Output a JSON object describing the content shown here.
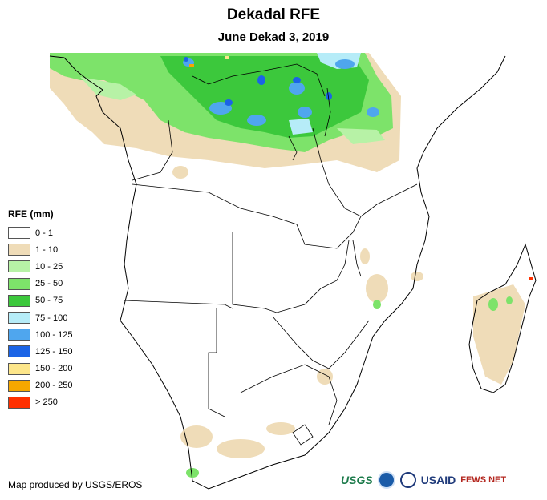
{
  "title": "Dekadal RFE",
  "subtitle": "June Dekad 3, 2019",
  "legend": {
    "title": "RFE (mm)",
    "items": [
      {
        "label": "0 - 1",
        "color": "#ffffff"
      },
      {
        "label": "1 - 10",
        "color": "#efdcb8"
      },
      {
        "label": "10 - 25",
        "color": "#b7f2a6"
      },
      {
        "label": "25 - 50",
        "color": "#7de36a"
      },
      {
        "label": "50 - 75",
        "color": "#3cc83c"
      },
      {
        "label": "75 - 100",
        "color": "#b6ecf8"
      },
      {
        "label": "100 - 125",
        "color": "#4fa6ee"
      },
      {
        "label": "125 - 150",
        "color": "#1b64e6"
      },
      {
        "label": "150 - 200",
        "color": "#fde68a"
      },
      {
        "label": "200 - 250",
        "color": "#f5a700"
      },
      {
        "label": "> 250",
        "color": "#ff3000"
      }
    ]
  },
  "credit": "Map produced by USGS/EROS",
  "logos": {
    "usgs": "USGS",
    "usaid": "USAID",
    "fews": "FEWS NET"
  }
}
